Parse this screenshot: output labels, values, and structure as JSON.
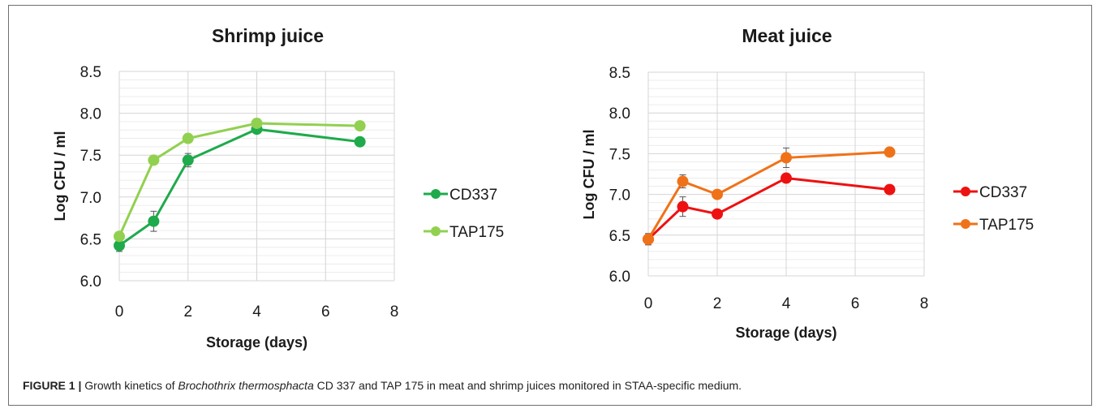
{
  "chart_data": [
    {
      "type": "line",
      "title": "Shrimp juice",
      "xlabel": "Storage (days)",
      "ylabel": "Log CFU / ml",
      "xlim": [
        0,
        8
      ],
      "ylim": [
        6.0,
        8.5
      ],
      "x_ticks": [
        "0",
        "2",
        "4",
        "6",
        "8"
      ],
      "y_ticks": [
        "6.0",
        "6.5",
        "7.0",
        "7.5",
        "8.0",
        "8.5"
      ],
      "grid": true,
      "legend": "right",
      "x": [
        0,
        1,
        2,
        4,
        7
      ],
      "series": [
        {
          "name": "CD337",
          "color": "#1faa4b",
          "values": [
            6.42,
            6.71,
            7.44,
            7.81,
            7.66
          ],
          "errors": [
            0.07,
            0.12,
            0.08,
            0.03,
            0.03
          ]
        },
        {
          "name": "TAP175",
          "color": "#92d050",
          "values": [
            6.53,
            7.44,
            7.7,
            7.88,
            7.85
          ],
          "errors": [
            0.03,
            0.03,
            0.03,
            0.03,
            0.03
          ]
        }
      ]
    },
    {
      "type": "line",
      "title": "Meat juice",
      "xlabel": "Storage (days)",
      "ylabel": "Log CFU / ml",
      "xlim": [
        0,
        8
      ],
      "ylim": [
        6.0,
        8.5
      ],
      "x_ticks": [
        "0",
        "2",
        "4",
        "6",
        "8"
      ],
      "y_ticks": [
        "6.0",
        "6.5",
        "7.0",
        "7.5",
        "8.0",
        "8.5"
      ],
      "grid": true,
      "legend": "right",
      "x": [
        0,
        1,
        2,
        4,
        7
      ],
      "series": [
        {
          "name": "CD337",
          "color": "#ee1111",
          "values": [
            6.45,
            6.85,
            6.76,
            7.2,
            7.06
          ],
          "errors": [
            0.07,
            0.12,
            0.03,
            0.03,
            0.03
          ]
        },
        {
          "name": "TAP175",
          "color": "#f07218",
          "values": [
            6.45,
            7.16,
            7.0,
            7.45,
            7.52
          ],
          "errors": [
            0.03,
            0.08,
            0.03,
            0.12,
            0.03
          ]
        }
      ]
    }
  ],
  "caption": {
    "label": "FIGURE 1 |",
    "text_before": " Growth kinetics of ",
    "species": "Brochothrix thermosphacta",
    "text_after": " CD 337 and TAP 175 in meat and shrimp juices monitored in STAA-specific medium."
  }
}
